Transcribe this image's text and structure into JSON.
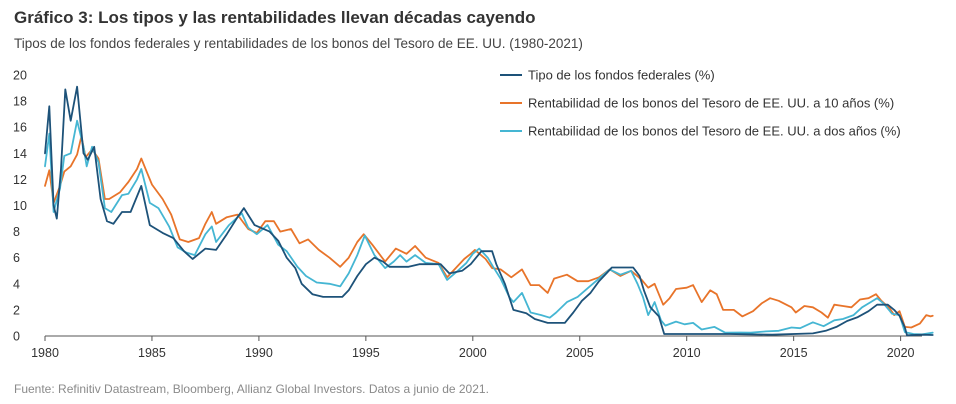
{
  "header": {
    "title": "Gráfico 3: Los tipos y las rentabilidades llevan décadas cayendo",
    "subtitle": "Tipos de los fondos federales y rentabilidades de los bonos del Tesoro de EE. UU. (1980-2021)"
  },
  "footer": {
    "source": "Fuente: Refinitiv Datastream, Bloomberg, Allianz Global Investors. Datos a junio de 2021."
  },
  "colors": {
    "fed": "#1d5279",
    "ten_year": "#e8742a",
    "two_year": "#45b6d3",
    "axis": "#555555"
  },
  "chart_data": {
    "type": "line",
    "title": "Gráfico 3: Los tipos y las rentabilidades llevan décadas cayendo",
    "xlabel": "",
    "ylabel": "",
    "xlim": [
      1980,
      2021
    ],
    "ylim": [
      0,
      20
    ],
    "x_ticks": [
      "1980",
      "1985",
      "1990",
      "1995",
      "2000",
      "2005",
      "2010",
      "2015",
      "2020"
    ],
    "y_ticks": [
      "0",
      "2",
      "4",
      "6",
      "8",
      "10",
      "12",
      "14",
      "16",
      "18",
      "20"
    ],
    "legend_position": "top-right",
    "series": [
      {
        "name": "Tipo de los fondos federales (%)",
        "color": "#1d5279",
        "points": [
          [
            1980.0,
            14.0
          ],
          [
            1980.2,
            17.6
          ],
          [
            1980.4,
            10.0
          ],
          [
            1980.55,
            9.0
          ],
          [
            1980.75,
            12.8
          ],
          [
            1980.95,
            18.9
          ],
          [
            1981.2,
            16.5
          ],
          [
            1981.5,
            19.1
          ],
          [
            1981.8,
            14.0
          ],
          [
            1982.0,
            13.5
          ],
          [
            1982.3,
            14.5
          ],
          [
            1982.6,
            10.5
          ],
          [
            1982.9,
            8.8
          ],
          [
            1983.2,
            8.6
          ],
          [
            1983.6,
            9.5
          ],
          [
            1984.0,
            9.5
          ],
          [
            1984.5,
            11.5
          ],
          [
            1984.9,
            8.5
          ],
          [
            1985.5,
            7.9
          ],
          [
            1986.0,
            7.5
          ],
          [
            1986.5,
            6.5
          ],
          [
            1986.9,
            5.9
          ],
          [
            1987.5,
            6.7
          ],
          [
            1988.0,
            6.6
          ],
          [
            1988.5,
            7.8
          ],
          [
            1989.0,
            9.1
          ],
          [
            1989.3,
            9.8
          ],
          [
            1989.8,
            8.5
          ],
          [
            1990.5,
            8.0
          ],
          [
            1990.9,
            7.3
          ],
          [
            1991.3,
            6.0
          ],
          [
            1991.7,
            5.2
          ],
          [
            1992.0,
            4.0
          ],
          [
            1992.5,
            3.2
          ],
          [
            1993.0,
            3.0
          ],
          [
            1993.9,
            3.0
          ],
          [
            1994.2,
            3.5
          ],
          [
            1994.6,
            4.6
          ],
          [
            1995.0,
            5.5
          ],
          [
            1995.4,
            6.0
          ],
          [
            1995.8,
            5.7
          ],
          [
            1996.1,
            5.3
          ],
          [
            1997.0,
            5.3
          ],
          [
            1997.5,
            5.5
          ],
          [
            1998.5,
            5.5
          ],
          [
            1998.9,
            4.8
          ],
          [
            1999.5,
            5.0
          ],
          [
            1999.9,
            5.5
          ],
          [
            2000.4,
            6.5
          ],
          [
            2000.9,
            6.5
          ],
          [
            2001.1,
            5.5
          ],
          [
            2001.5,
            4.0
          ],
          [
            2001.9,
            2.0
          ],
          [
            2002.5,
            1.75
          ],
          [
            2002.9,
            1.3
          ],
          [
            2003.5,
            1.0
          ],
          [
            2004.3,
            1.0
          ],
          [
            2004.7,
            1.8
          ],
          [
            2005.1,
            2.7
          ],
          [
            2005.5,
            3.3
          ],
          [
            2005.9,
            4.2
          ],
          [
            2006.3,
            4.9
          ],
          [
            2006.5,
            5.25
          ],
          [
            2007.5,
            5.25
          ],
          [
            2007.8,
            4.6
          ],
          [
            2008.0,
            3.5
          ],
          [
            2008.3,
            2.2
          ],
          [
            2008.7,
            1.5
          ],
          [
            2008.95,
            0.15
          ],
          [
            2010.0,
            0.15
          ],
          [
            2012.0,
            0.15
          ],
          [
            2014.0,
            0.1
          ],
          [
            2015.9,
            0.2
          ],
          [
            2016.5,
            0.4
          ],
          [
            2017.0,
            0.7
          ],
          [
            2017.5,
            1.15
          ],
          [
            2018.0,
            1.45
          ],
          [
            2018.5,
            1.9
          ],
          [
            2018.9,
            2.4
          ],
          [
            2019.4,
            2.4
          ],
          [
            2019.7,
            2.0
          ],
          [
            2019.95,
            1.55
          ],
          [
            2020.2,
            0.65
          ],
          [
            2020.3,
            0.05
          ],
          [
            2021.0,
            0.1
          ],
          [
            2021.5,
            0.08
          ]
        ]
      },
      {
        "name": "Rentabilidad de los bonos del Tesoro de EE. UU. a 10 años (%)",
        "color": "#e8742a",
        "points": [
          [
            1980.0,
            11.5
          ],
          [
            1980.2,
            12.7
          ],
          [
            1980.4,
            10.2
          ],
          [
            1980.7,
            11.5
          ],
          [
            1980.9,
            12.6
          ],
          [
            1981.2,
            13.0
          ],
          [
            1981.5,
            13.9
          ],
          [
            1981.7,
            15.3
          ],
          [
            1981.9,
            13.7
          ],
          [
            1982.2,
            14.3
          ],
          [
            1982.5,
            13.6
          ],
          [
            1982.8,
            10.5
          ],
          [
            1983.0,
            10.5
          ],
          [
            1983.5,
            11.0
          ],
          [
            1983.9,
            11.8
          ],
          [
            1984.3,
            12.8
          ],
          [
            1984.5,
            13.6
          ],
          [
            1984.8,
            12.4
          ],
          [
            1985.0,
            11.6
          ],
          [
            1985.5,
            10.5
          ],
          [
            1985.9,
            9.3
          ],
          [
            1986.3,
            7.4
          ],
          [
            1986.7,
            7.2
          ],
          [
            1987.2,
            7.5
          ],
          [
            1987.5,
            8.6
          ],
          [
            1987.8,
            9.5
          ],
          [
            1988.0,
            8.6
          ],
          [
            1988.5,
            9.1
          ],
          [
            1989.0,
            9.3
          ],
          [
            1989.5,
            8.2
          ],
          [
            1989.9,
            7.9
          ],
          [
            1990.3,
            8.8
          ],
          [
            1990.7,
            8.8
          ],
          [
            1991.0,
            8.0
          ],
          [
            1991.5,
            8.2
          ],
          [
            1991.9,
            7.1
          ],
          [
            1992.3,
            7.4
          ],
          [
            1992.8,
            6.6
          ],
          [
            1993.3,
            6.0
          ],
          [
            1993.8,
            5.3
          ],
          [
            1994.2,
            6.0
          ],
          [
            1994.6,
            7.2
          ],
          [
            1994.9,
            7.8
          ],
          [
            1995.3,
            7.0
          ],
          [
            1995.9,
            5.7
          ],
          [
            1996.4,
            6.7
          ],
          [
            1996.9,
            6.3
          ],
          [
            1997.3,
            6.9
          ],
          [
            1997.8,
            6.0
          ],
          [
            1998.4,
            5.6
          ],
          [
            1998.8,
            4.5
          ],
          [
            1999.2,
            5.2
          ],
          [
            1999.6,
            5.9
          ],
          [
            1999.9,
            6.3
          ],
          [
            2000.1,
            6.6
          ],
          [
            2000.6,
            5.9
          ],
          [
            2000.9,
            5.2
          ],
          [
            2001.3,
            5.1
          ],
          [
            2001.8,
            4.5
          ],
          [
            2002.3,
            5.1
          ],
          [
            2002.7,
            3.9
          ],
          [
            2003.1,
            3.9
          ],
          [
            2003.5,
            3.3
          ],
          [
            2003.8,
            4.4
          ],
          [
            2004.4,
            4.7
          ],
          [
            2004.9,
            4.2
          ],
          [
            2005.4,
            4.2
          ],
          [
            2005.9,
            4.5
          ],
          [
            2006.4,
            5.1
          ],
          [
            2006.9,
            4.6
          ],
          [
            2007.4,
            5.0
          ],
          [
            2007.9,
            4.3
          ],
          [
            2008.2,
            3.7
          ],
          [
            2008.5,
            4.0
          ],
          [
            2008.9,
            2.4
          ],
          [
            2009.2,
            2.9
          ],
          [
            2009.5,
            3.6
          ],
          [
            2010.0,
            3.7
          ],
          [
            2010.3,
            3.9
          ],
          [
            2010.7,
            2.6
          ],
          [
            2011.1,
            3.5
          ],
          [
            2011.4,
            3.2
          ],
          [
            2011.7,
            2.0
          ],
          [
            2012.2,
            2.0
          ],
          [
            2012.6,
            1.5
          ],
          [
            2013.1,
            1.9
          ],
          [
            2013.5,
            2.5
          ],
          [
            2013.9,
            2.9
          ],
          [
            2014.3,
            2.7
          ],
          [
            2014.9,
            2.2
          ],
          [
            2015.1,
            1.8
          ],
          [
            2015.5,
            2.3
          ],
          [
            2015.9,
            2.2
          ],
          [
            2016.3,
            1.8
          ],
          [
            2016.6,
            1.4
          ],
          [
            2016.9,
            2.4
          ],
          [
            2017.3,
            2.3
          ],
          [
            2017.7,
            2.2
          ],
          [
            2018.1,
            2.8
          ],
          [
            2018.5,
            2.9
          ],
          [
            2018.85,
            3.2
          ],
          [
            2019.1,
            2.7
          ],
          [
            2019.5,
            2.1
          ],
          [
            2019.7,
            1.6
          ],
          [
            2019.95,
            1.9
          ],
          [
            2020.2,
            0.7
          ],
          [
            2020.5,
            0.65
          ],
          [
            2020.9,
            0.95
          ],
          [
            2021.2,
            1.6
          ],
          [
            2021.4,
            1.5
          ],
          [
            2021.5,
            1.55
          ]
        ]
      },
      {
        "name": "Rentabilidad de los bonos del Tesoro de EE. UU. a dos años (%)",
        "color": "#45b6d3",
        "points": [
          [
            1980.0,
            13.0
          ],
          [
            1980.2,
            15.5
          ],
          [
            1980.4,
            9.5
          ],
          [
            1980.7,
            11.3
          ],
          [
            1980.9,
            13.8
          ],
          [
            1981.2,
            14.0
          ],
          [
            1981.5,
            16.5
          ],
          [
            1981.8,
            14.5
          ],
          [
            1981.95,
            13.0
          ],
          [
            1982.2,
            14.5
          ],
          [
            1982.5,
            13.3
          ],
          [
            1982.8,
            9.8
          ],
          [
            1983.1,
            9.5
          ],
          [
            1983.6,
            10.8
          ],
          [
            1983.9,
            10.9
          ],
          [
            1984.3,
            12.0
          ],
          [
            1984.5,
            12.8
          ],
          [
            1984.9,
            10.2
          ],
          [
            1985.3,
            9.8
          ],
          [
            1985.8,
            8.4
          ],
          [
            1986.2,
            6.8
          ],
          [
            1986.6,
            6.4
          ],
          [
            1987.0,
            6.2
          ],
          [
            1987.5,
            7.8
          ],
          [
            1987.8,
            8.4
          ],
          [
            1988.0,
            7.2
          ],
          [
            1988.6,
            8.5
          ],
          [
            1989.2,
            9.4
          ],
          [
            1989.5,
            8.3
          ],
          [
            1989.9,
            7.8
          ],
          [
            1990.4,
            8.5
          ],
          [
            1990.9,
            7.0
          ],
          [
            1991.3,
            6.5
          ],
          [
            1991.8,
            5.3
          ],
          [
            1992.2,
            4.6
          ],
          [
            1992.7,
            4.1
          ],
          [
            1993.3,
            4.0
          ],
          [
            1993.8,
            3.8
          ],
          [
            1994.2,
            4.8
          ],
          [
            1994.6,
            6.2
          ],
          [
            1994.95,
            7.7
          ],
          [
            1995.4,
            6.2
          ],
          [
            1995.9,
            5.2
          ],
          [
            1996.3,
            5.7
          ],
          [
            1996.6,
            6.2
          ],
          [
            1996.9,
            5.7
          ],
          [
            1997.3,
            6.2
          ],
          [
            1997.8,
            5.6
          ],
          [
            1998.4,
            5.5
          ],
          [
            1998.8,
            4.3
          ],
          [
            1999.3,
            5.0
          ],
          [
            1999.7,
            5.6
          ],
          [
            2000.0,
            6.3
          ],
          [
            2000.3,
            6.7
          ],
          [
            2000.7,
            6.0
          ],
          [
            2000.95,
            5.3
          ],
          [
            2001.3,
            4.4
          ],
          [
            2001.7,
            3.0
          ],
          [
            2001.9,
            2.6
          ],
          [
            2002.3,
            3.3
          ],
          [
            2002.7,
            1.8
          ],
          [
            2003.2,
            1.6
          ],
          [
            2003.6,
            1.4
          ],
          [
            2003.9,
            1.8
          ],
          [
            2004.4,
            2.6
          ],
          [
            2004.9,
            3.0
          ],
          [
            2005.4,
            3.7
          ],
          [
            2005.9,
            4.4
          ],
          [
            2006.4,
            5.1
          ],
          [
            2006.9,
            4.7
          ],
          [
            2007.4,
            5.0
          ],
          [
            2007.7,
            4.0
          ],
          [
            2007.95,
            3.0
          ],
          [
            2008.2,
            1.6
          ],
          [
            2008.5,
            2.6
          ],
          [
            2008.8,
            1.2
          ],
          [
            2009.0,
            0.8
          ],
          [
            2009.5,
            1.1
          ],
          [
            2009.9,
            0.9
          ],
          [
            2010.3,
            1.0
          ],
          [
            2010.7,
            0.5
          ],
          [
            2011.3,
            0.7
          ],
          [
            2011.8,
            0.25
          ],
          [
            2012.5,
            0.27
          ],
          [
            2013.0,
            0.25
          ],
          [
            2013.7,
            0.35
          ],
          [
            2014.3,
            0.4
          ],
          [
            2014.9,
            0.65
          ],
          [
            2015.3,
            0.6
          ],
          [
            2015.9,
            1.05
          ],
          [
            2016.4,
            0.75
          ],
          [
            2016.9,
            1.2
          ],
          [
            2017.3,
            1.3
          ],
          [
            2017.8,
            1.6
          ],
          [
            2018.2,
            2.2
          ],
          [
            2018.6,
            2.6
          ],
          [
            2018.9,
            2.9
          ],
          [
            2019.2,
            2.5
          ],
          [
            2019.6,
            1.7
          ],
          [
            2019.95,
            1.6
          ],
          [
            2020.2,
            0.3
          ],
          [
            2020.6,
            0.15
          ],
          [
            2021.0,
            0.12
          ],
          [
            2021.5,
            0.25
          ]
        ]
      }
    ]
  }
}
